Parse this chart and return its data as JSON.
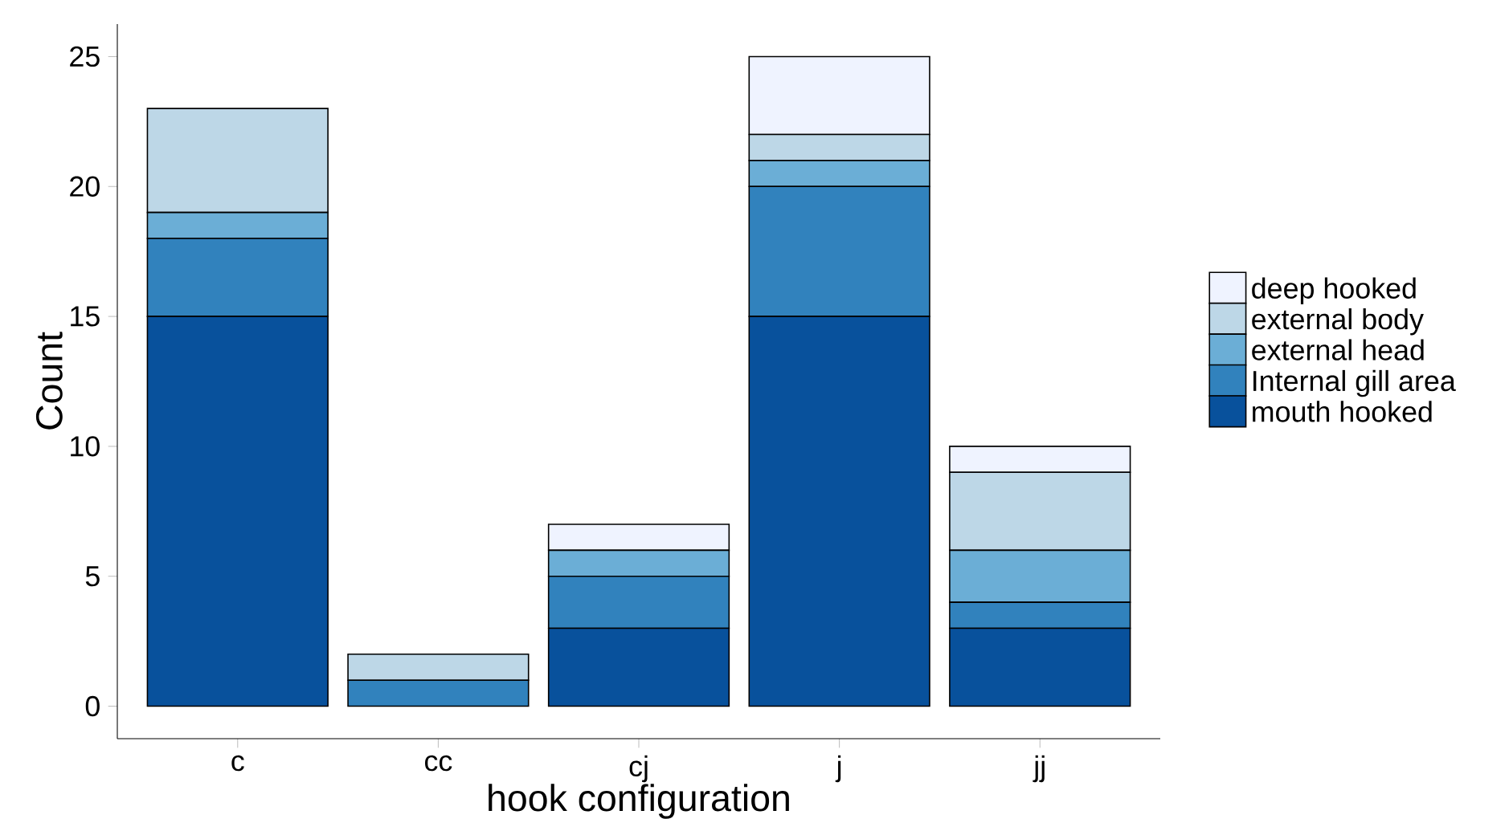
{
  "chart_data": {
    "type": "bar",
    "stacked": true,
    "xlabel": "hook configuration",
    "ylabel": "Count",
    "categories": [
      "c",
      "cc",
      "cj",
      "j",
      "jj"
    ],
    "series": [
      {
        "name": "mouth hooked",
        "color": "#08519c",
        "values": [
          15,
          0,
          3,
          15,
          3
        ]
      },
      {
        "name": "Internal gill area",
        "color": "#3182bd",
        "values": [
          3,
          1,
          2,
          5,
          1
        ]
      },
      {
        "name": "external head",
        "color": "#6baed6",
        "values": [
          1,
          0,
          1,
          1,
          2
        ]
      },
      {
        "name": "external body",
        "color": "#bdd7e7",
        "values": [
          4,
          1,
          0,
          1,
          3
        ]
      },
      {
        "name": "deep hooked",
        "color": "#eff3ff",
        "values": [
          0,
          0,
          1,
          3,
          1
        ]
      }
    ],
    "ylim": [
      -1.25,
      26.25
    ],
    "yticks": [
      0,
      5,
      10,
      15,
      20,
      25
    ],
    "grid": false,
    "legend": "right"
  }
}
